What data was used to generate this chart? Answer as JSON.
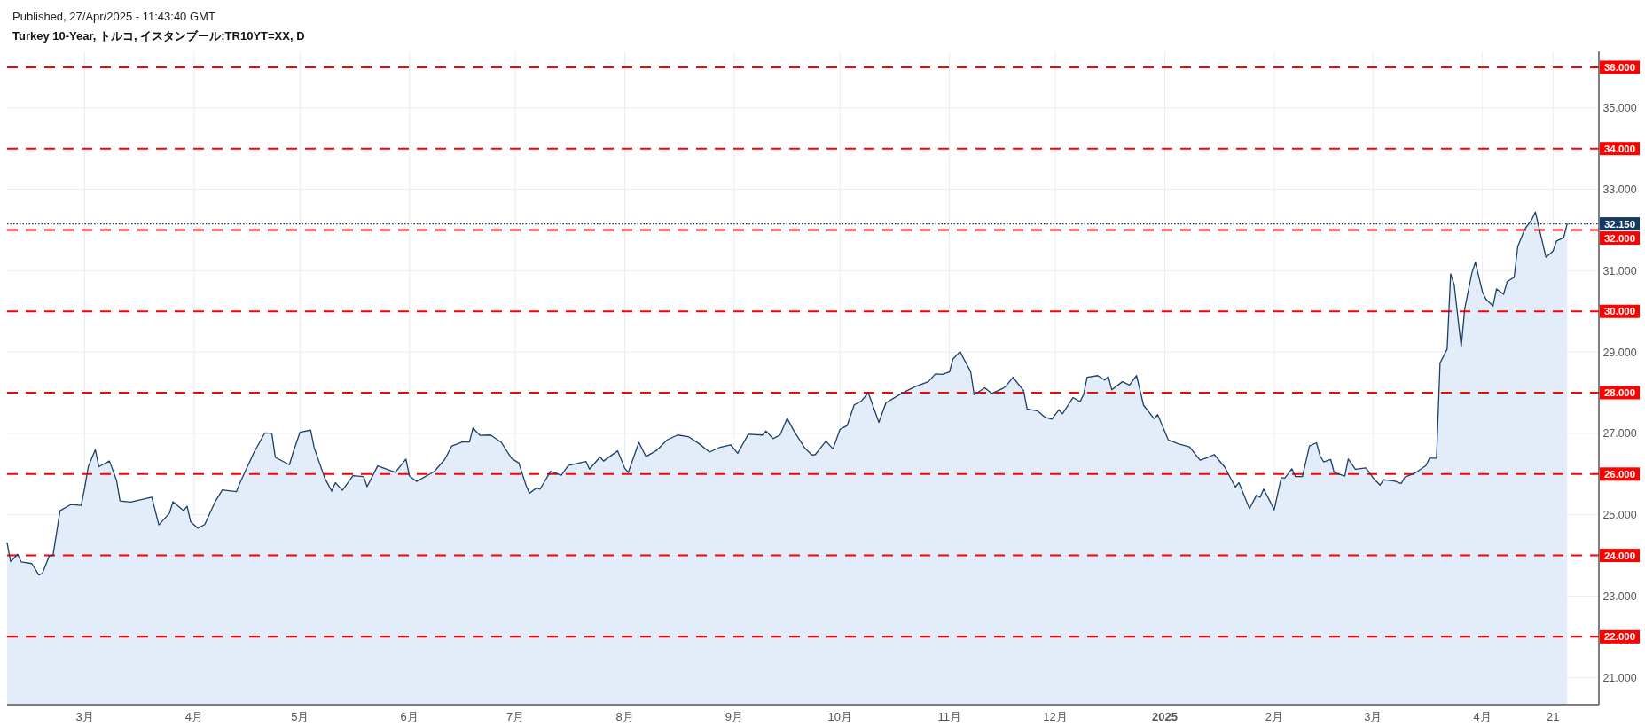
{
  "chart_data": {
    "type": "area",
    "title": "Turkey 10-Year, トルコ, イスタンブール:TR10YT=XX, D",
    "annotations": [
      "Published, 27/Apr/2025 - 11:43:40 GMT"
    ],
    "x": [
      "2024-02-08",
      "2024-02-09",
      "2024-02-11",
      "2024-02-12",
      "2024-02-15",
      "2024-02-17",
      "2024-02-18",
      "2024-02-20",
      "2024-02-21",
      "2024-02-23",
      "2024-02-26",
      "2024-02-29",
      "2024-03-01",
      "2024-03-02",
      "2024-03-04",
      "2024-03-05",
      "2024-03-08",
      "2024-03-10",
      "2024-03-11",
      "2024-03-14",
      "2024-03-20",
      "2024-03-22",
      "2024-03-25",
      "2024-03-26",
      "2024-03-29",
      "2024-03-30",
      "2024-03-31",
      "2024-04-02",
      "2024-04-04",
      "2024-04-07",
      "2024-04-09",
      "2024-04-13",
      "2024-04-14",
      "2024-04-18",
      "2024-04-21",
      "2024-04-23",
      "2024-04-24",
      "2024-04-28",
      "2024-04-29",
      "2024-05-01",
      "2024-05-04",
      "2024-05-05",
      "2024-05-08",
      "2024-05-10",
      "2024-05-11",
      "2024-05-13",
      "2024-05-16",
      "2024-05-19",
      "2024-05-20",
      "2024-05-23",
      "2024-05-28",
      "2024-05-31",
      "2024-06-01",
      "2024-06-03",
      "2024-06-08",
      "2024-06-11",
      "2024-06-13",
      "2024-06-16",
      "2024-06-18",
      "2024-06-19",
      "2024-06-21",
      "2024-06-24",
      "2024-06-27",
      "2024-06-29",
      "2024-06-30",
      "2024-07-02",
      "2024-07-04",
      "2024-07-05",
      "2024-07-07",
      "2024-07-08",
      "2024-07-11",
      "2024-07-14",
      "2024-07-16",
      "2024-07-21",
      "2024-07-22",
      "2024-07-25",
      "2024-07-26",
      "2024-07-30",
      "2024-08-01",
      "2024-08-02",
      "2024-08-05",
      "2024-08-07",
      "2024-08-10",
      "2024-08-13",
      "2024-08-16",
      "2024-08-19",
      "2024-08-22",
      "2024-08-25",
      "2024-08-28",
      "2024-08-31",
      "2024-09-02",
      "2024-09-05",
      "2024-09-09",
      "2024-09-10",
      "2024-09-12",
      "2024-09-14",
      "2024-09-16",
      "2024-09-18",
      "2024-09-21",
      "2024-09-23",
      "2024-09-24",
      "2024-09-27",
      "2024-09-29",
      "2024-10-01",
      "2024-10-03",
      "2024-10-05",
      "2024-10-07",
      "2024-10-09",
      "2024-10-12",
      "2024-10-14",
      "2024-10-18",
      "2024-10-22",
      "2024-10-26",
      "2024-10-28",
      "2024-10-30",
      "2024-11-01",
      "2024-11-02",
      "2024-11-04",
      "2024-11-05",
      "2024-11-07",
      "2024-11-08",
      "2024-11-11",
      "2024-11-13",
      "2024-11-16",
      "2024-11-17",
      "2024-11-19",
      "2024-11-22",
      "2024-11-23",
      "2024-11-26",
      "2024-11-28",
      "2024-11-30",
      "2024-12-02",
      "2024-12-03",
      "2024-12-06",
      "2024-12-08",
      "2024-12-09",
      "2024-12-10",
      "2024-12-13",
      "2024-12-15",
      "2024-12-16",
      "2024-12-17",
      "2024-12-20",
      "2024-12-22",
      "2024-12-24",
      "2024-12-26",
      "2024-12-29",
      "2024-12-30",
      "2025-01-02",
      "2025-01-05",
      "2025-01-08",
      "2025-01-11",
      "2025-01-13",
      "2025-01-15",
      "2025-01-18",
      "2025-01-21",
      "2025-01-22",
      "2025-01-25",
      "2025-01-27",
      "2025-01-28",
      "2025-01-29",
      "2025-01-31",
      "2025-02-01",
      "2025-02-03",
      "2025-02-04",
      "2025-02-06",
      "2025-02-07",
      "2025-02-09",
      "2025-02-11",
      "2025-02-13",
      "2025-02-14",
      "2025-02-15",
      "2025-02-17",
      "2025-02-18",
      "2025-02-21",
      "2025-02-22",
      "2025-02-24",
      "2025-02-27",
      "2025-03-01",
      "2025-03-03",
      "2025-03-04",
      "2025-03-07",
      "2025-03-09",
      "2025-03-10",
      "2025-03-13",
      "2025-03-16",
      "2025-03-17",
      "2025-03-19",
      "2025-03-20",
      "2025-03-22",
      "2025-03-23",
      "2025-03-24",
      "2025-03-26",
      "2025-03-27",
      "2025-03-29",
      "2025-03-30",
      "2025-04-01",
      "2025-04-02",
      "2025-04-04",
      "2025-04-05",
      "2025-04-07",
      "2025-04-08",
      "2025-04-10",
      "2025-04-11",
      "2025-04-13",
      "2025-04-15",
      "2025-04-16",
      "2025-04-19",
      "2025-04-21",
      "2025-04-22",
      "2025-04-24",
      "2025-04-25"
    ],
    "series": [
      {
        "color": "#1d3f66",
        "values": [
          24.31,
          23.85,
          24.03,
          23.84,
          23.8,
          23.52,
          23.56,
          24.0,
          24.0,
          25.1,
          25.25,
          25.23,
          25.67,
          26.18,
          26.6,
          26.18,
          26.32,
          25.85,
          25.34,
          25.31,
          25.43,
          24.75,
          25.04,
          25.32,
          25.1,
          25.21,
          24.83,
          24.67,
          24.76,
          25.33,
          25.61,
          25.57,
          25.79,
          26.54,
          27.01,
          27.0,
          26.41,
          26.23,
          26.52,
          27.03,
          27.08,
          26.65,
          25.9,
          25.58,
          25.79,
          25.6,
          25.96,
          25.94,
          25.69,
          26.2,
          26.04,
          26.37,
          25.95,
          25.82,
          26.06,
          26.36,
          26.69,
          26.79,
          26.79,
          27.13,
          26.95,
          26.96,
          26.78,
          26.51,
          26.38,
          26.27,
          25.73,
          25.53,
          25.66,
          25.63,
          26.07,
          25.97,
          26.21,
          26.31,
          26.12,
          26.42,
          26.32,
          26.57,
          26.14,
          26.04,
          26.78,
          26.43,
          26.58,
          26.84,
          26.96,
          26.92,
          26.75,
          26.54,
          26.66,
          26.72,
          26.51,
          26.98,
          26.96,
          27.06,
          26.87,
          26.96,
          27.37,
          27.05,
          26.64,
          26.47,
          26.48,
          26.81,
          26.62,
          27.1,
          27.19,
          27.7,
          27.79,
          28.0,
          27.27,
          27.75,
          27.96,
          28.14,
          28.27,
          28.46,
          28.45,
          28.51,
          28.83,
          29.01,
          28.84,
          28.52,
          27.95,
          28.12,
          27.98,
          28.1,
          28.16,
          28.38,
          28.05,
          27.6,
          27.55,
          27.4,
          27.35,
          27.58,
          27.48,
          27.88,
          27.78,
          27.95,
          28.38,
          28.42,
          28.31,
          28.4,
          28.07,
          28.27,
          28.19,
          28.42,
          27.69,
          27.36,
          27.46,
          26.84,
          26.74,
          26.67,
          26.34,
          26.4,
          26.48,
          26.17,
          25.68,
          25.79,
          25.15,
          25.48,
          25.43,
          25.63,
          25.3,
          25.12,
          25.91,
          25.9,
          26.13,
          25.94,
          25.94,
          26.69,
          26.77,
          26.45,
          26.3,
          26.36,
          26.04,
          25.95,
          26.37,
          26.12,
          26.15,
          25.91,
          25.73,
          25.86,
          25.83,
          25.77,
          25.92,
          26.03,
          26.21,
          26.39,
          26.39,
          28.73,
          29.07,
          30.92,
          30.66,
          29.13,
          30.07,
          30.94,
          31.21,
          30.48,
          30.3,
          30.13,
          30.55,
          30.42,
          30.73,
          30.84,
          31.59,
          32.02,
          32.26,
          32.44,
          31.33,
          31.48,
          31.73,
          31.81,
          32.15
        ]
      }
    ],
    "xlim": [
      "2024-02-08",
      "2025-05-04"
    ],
    "ylim": [
      20.33,
      36.39
    ],
    "xticks": [
      {
        "value": "2024-03-01",
        "label": "3月"
      },
      {
        "value": "2024-04-01",
        "label": "4月"
      },
      {
        "value": "2024-05-01",
        "label": "5月"
      },
      {
        "value": "2024-06-01",
        "label": "6月"
      },
      {
        "value": "2024-07-01",
        "label": "7月"
      },
      {
        "value": "2024-08-01",
        "label": "8月"
      },
      {
        "value": "2024-09-01",
        "label": "9月"
      },
      {
        "value": "2024-10-01",
        "label": "10月"
      },
      {
        "value": "2024-11-01",
        "label": "11月"
      },
      {
        "value": "2024-12-01",
        "label": "12月"
      },
      {
        "value": "2025-01-01",
        "label": "2025"
      },
      {
        "value": "2025-02-01",
        "label": "2月"
      },
      {
        "value": "2025-03-01",
        "label": "3月"
      },
      {
        "value": "2025-04-01",
        "label": "4月"
      },
      {
        "value": "2025-04-21",
        "label": "21"
      }
    ],
    "yticks": [
      {
        "value": 21,
        "label": "21.000"
      },
      {
        "value": 23,
        "label": "23.000"
      },
      {
        "value": 25,
        "label": "25.000"
      },
      {
        "value": 27,
        "label": "27.000"
      },
      {
        "value": 29,
        "label": "29.000"
      },
      {
        "value": 31,
        "label": "31.000"
      },
      {
        "value": 33,
        "label": "33.000"
      },
      {
        "value": 35,
        "label": "35.000"
      }
    ],
    "grid": true,
    "ref_lines": [
      {
        "axis": "y",
        "value": 32.15,
        "label": "32.150",
        "color": "#123a63",
        "line_style": "dotted"
      },
      {
        "axis": "y",
        "value": 36,
        "label": "36.000",
        "color": "#ff0000",
        "line_style": "dashed"
      },
      {
        "axis": "y",
        "value": 34,
        "label": "34.000",
        "color": "#ff0000",
        "line_style": "dashed"
      },
      {
        "axis": "y",
        "value": 32,
        "label": "32.000",
        "color": "#ff0000",
        "line_style": "dashed"
      },
      {
        "axis": "y",
        "value": 30,
        "label": "30.000",
        "color": "#ff0000",
        "line_style": "dashed"
      },
      {
        "axis": "y",
        "value": 28,
        "label": "28.000",
        "color": "#ff0000",
        "line_style": "dashed"
      },
      {
        "axis": "y",
        "value": 26,
        "label": "26.000",
        "color": "#ff0000",
        "line_style": "dashed"
      },
      {
        "axis": "y",
        "value": 24,
        "label": "24.000",
        "color": "#ff0000",
        "line_style": "dashed"
      },
      {
        "axis": "y",
        "value": 22,
        "label": "22.000",
        "color": "#ff0000",
        "line_style": "dashed"
      }
    ]
  }
}
